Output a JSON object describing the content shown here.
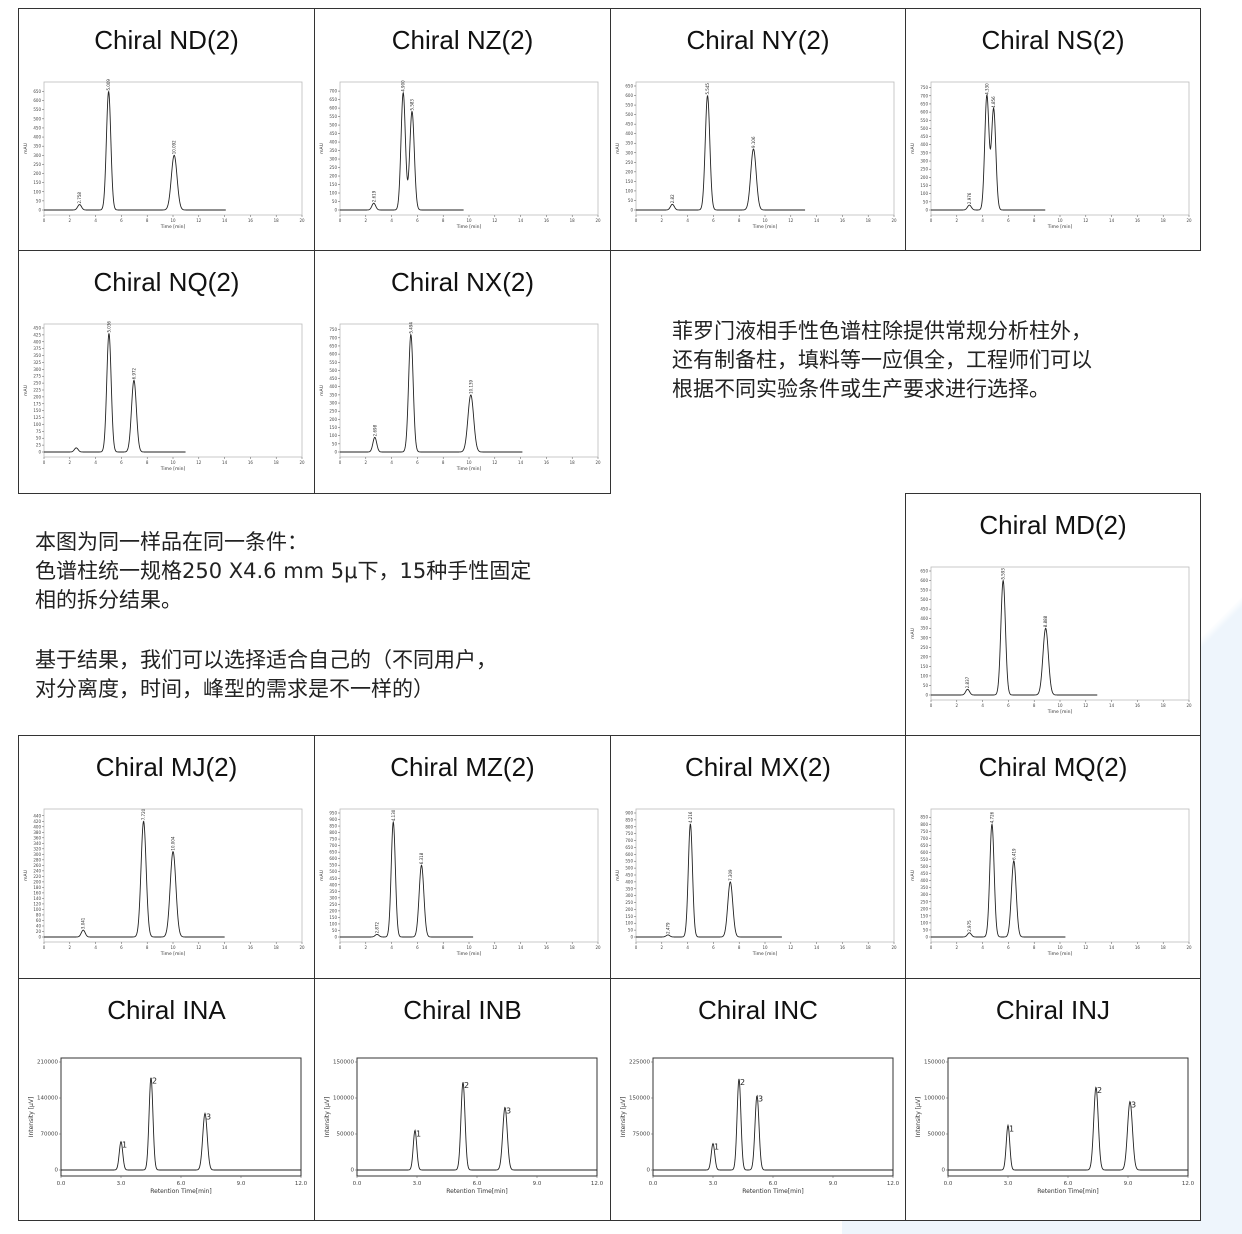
{
  "notes": {
    "right": [
      "菲罗门液相手性色谱柱除提供常规分析柱外，",
      "还有制备柱，填料等一应俱全，工程师们可以",
      "根据不同实验条件或生产要求进行选择。"
    ],
    "left1": [
      "本图为同一样品在同一条件：",
      "色谱柱统一规格250 X4.6 mm 5μ下，15种手性固定",
      "相的拆分结果。"
    ],
    "left2": [
      "基于结果，我们可以选择适合自己的（不同用户，",
      "对分离度，时间，峰型的需求是不一样的）"
    ]
  },
  "chart_data": [
    {
      "title": "Chiral ND(2)",
      "type": "line",
      "xlabel": "Time [min]",
      "ylabel": "mAU",
      "xlim": [
        0,
        20
      ],
      "ylim": [
        0,
        680
      ],
      "ystep": 50,
      "peaks": [
        {
          "x": 2.758,
          "y": 30,
          "label": "2.758"
        },
        {
          "x": 5.009,
          "y": 650,
          "label": "5.009"
        },
        {
          "x": 10.092,
          "y": 300,
          "label": "10.092"
        }
      ]
    },
    {
      "title": "Chiral NZ(2)",
      "type": "line",
      "xlabel": "Time [min]",
      "ylabel": "mAU",
      "xlim": [
        0,
        20
      ],
      "ylim": [
        0,
        730
      ],
      "ystep": 50,
      "peaks": [
        {
          "x": 2.619,
          "y": 40,
          "label": "2.619"
        },
        {
          "x": 4.9,
          "y": 690,
          "label": "4.900"
        },
        {
          "x": 5.583,
          "y": 580,
          "label": "5.583"
        }
      ]
    },
    {
      "title": "Chiral NY(2)",
      "type": "line",
      "xlabel": "Time [min]",
      "ylabel": "mAU",
      "xlim": [
        0,
        20
      ],
      "ylim": [
        0,
        650
      ],
      "ystep": 50,
      "peaks": [
        {
          "x": 2.82,
          "y": 30,
          "label": "2.82"
        },
        {
          "x": 5.545,
          "y": 600,
          "label": "5.545"
        },
        {
          "x": 9.106,
          "y": 320,
          "label": "9.106"
        }
      ]
    },
    {
      "title": "Chiral NS(2)",
      "type": "line",
      "xlabel": "Time [min]",
      "ylabel": "mAU",
      "xlim": [
        0,
        20
      ],
      "ylim": [
        0,
        760
      ],
      "ystep": 50,
      "peaks": [
        {
          "x": 2.976,
          "y": 30,
          "label": "2.976"
        },
        {
          "x": 4.33,
          "y": 700,
          "label": "4.330"
        },
        {
          "x": 4.856,
          "y": 620,
          "label": "4.856"
        }
      ]
    },
    {
      "title": "Chiral NQ(2)",
      "type": "line",
      "xlabel": "Time [min]",
      "ylabel": "mAU",
      "xlim": [
        0,
        20
      ],
      "ylim": [
        0,
        450
      ],
      "ystep": 25,
      "peaks": [
        {
          "x": 2.5,
          "y": 15,
          "label": ""
        },
        {
          "x": 5.036,
          "y": 430,
          "label": "5.036"
        },
        {
          "x": 6.972,
          "y": 260,
          "label": "6.972"
        }
      ]
    },
    {
      "title": "Chiral NX(2)",
      "type": "line",
      "xlabel": "Time [min]",
      "ylabel": "mAU",
      "xlim": [
        0,
        20
      ],
      "ylim": [
        0,
        760
      ],
      "ystep": 50,
      "peaks": [
        {
          "x": 2.698,
          "y": 90,
          "label": "2.698"
        },
        {
          "x": 5.494,
          "y": 720,
          "label": "5.494"
        },
        {
          "x": 10.139,
          "y": 350,
          "label": "10.139"
        }
      ]
    },
    {
      "title": "Chiral MD(2)",
      "type": "line",
      "xlabel": "Time [min]",
      "ylabel": "mAU",
      "xlim": [
        0,
        20
      ],
      "ylim": [
        0,
        650
      ],
      "ystep": 50,
      "peaks": [
        {
          "x": 2.837,
          "y": 30,
          "label": "2.837"
        },
        {
          "x": 5.593,
          "y": 600,
          "label": "5.593"
        },
        {
          "x": 8.888,
          "y": 350,
          "label": "8.888"
        }
      ]
    },
    {
      "title": "Chiral MJ(2)",
      "type": "line",
      "xlabel": "Time [min]",
      "ylabel": "mAU",
      "xlim": [
        0,
        20
      ],
      "ylim": [
        0,
        450
      ],
      "ystep": 20,
      "peaks": [
        {
          "x": 3.041,
          "y": 25,
          "label": "3.041"
        },
        {
          "x": 7.72,
          "y": 420,
          "label": "7.720"
        },
        {
          "x": 10.004,
          "y": 310,
          "label": "10.004"
        }
      ]
    },
    {
      "title": "Chiral MZ(2)",
      "type": "line",
      "xlabel": "Time [min]",
      "ylabel": "mAU",
      "xlim": [
        0,
        20
      ],
      "ylim": [
        0,
        950
      ],
      "ystep": 50,
      "peaks": [
        {
          "x": 2.872,
          "y": 20,
          "label": "2.872"
        },
        {
          "x": 4.13,
          "y": 880,
          "label": "4.130"
        },
        {
          "x": 6.318,
          "y": 550,
          "label": "6.318"
        }
      ]
    },
    {
      "title": "Chiral MX(2)",
      "type": "line",
      "xlabel": "Time [min]",
      "ylabel": "mAU",
      "xlim": [
        0,
        20
      ],
      "ylim": [
        0,
        900
      ],
      "ystep": 50,
      "peaks": [
        {
          "x": 2.479,
          "y": 15,
          "label": "2.479"
        },
        {
          "x": 4.216,
          "y": 820,
          "label": "4.216"
        },
        {
          "x": 7.309,
          "y": 400,
          "label": "7.309"
        }
      ]
    },
    {
      "title": "Chiral MQ(2)",
      "type": "line",
      "xlabel": "Time [min]",
      "ylabel": "mAU",
      "xlim": [
        0,
        20
      ],
      "ylim": [
        0,
        880
      ],
      "ystep": 50,
      "peaks": [
        {
          "x": 2.975,
          "y": 30,
          "label": "2.975"
        },
        {
          "x": 4.726,
          "y": 800,
          "label": "4.726"
        },
        {
          "x": 6.419,
          "y": 540,
          "label": "6.419"
        }
      ]
    },
    {
      "title": "Chiral INA",
      "type": "line",
      "xlabel": "Retention Time[min]",
      "ylabel": "Intensity [μV]",
      "xlim": [
        0,
        12
      ],
      "ylim": [
        0,
        210000
      ],
      "yticks": [
        0,
        70000,
        140000,
        210000
      ],
      "xticks": [
        "0.0",
        "3.0",
        "6.0",
        "9.0",
        "12.0"
      ],
      "peaks": [
        {
          "x": 3.0,
          "y": 55000,
          "label": "1"
        },
        {
          "x": 4.5,
          "y": 180000,
          "label": "2"
        },
        {
          "x": 7.2,
          "y": 110000,
          "label": "3"
        }
      ]
    },
    {
      "title": "Chiral INB",
      "type": "line",
      "xlabel": "Retention Time[min]",
      "ylabel": "Intensity [μV]",
      "xlim": [
        0,
        12
      ],
      "ylim": [
        0,
        150000
      ],
      "yticks": [
        0,
        50000,
        100000,
        150000
      ],
      "xticks": [
        "0.0",
        "3.0",
        "6.0",
        "9.0",
        "12.0"
      ],
      "peaks": [
        {
          "x": 2.9,
          "y": 55000,
          "label": "1"
        },
        {
          "x": 5.3,
          "y": 122000,
          "label": "2"
        },
        {
          "x": 7.4,
          "y": 87000,
          "label": "3"
        }
      ]
    },
    {
      "title": "Chiral INC",
      "type": "line",
      "xlabel": "Retention Time[min]",
      "ylabel": "Intensity [μV]",
      "xlim": [
        0,
        12
      ],
      "ylim": [
        0,
        225000
      ],
      "yticks": [
        0,
        75000,
        150000,
        225000
      ],
      "xticks": [
        "0.0",
        "3.0",
        "6.0",
        "9.0",
        "12.0"
      ],
      "peaks": [
        {
          "x": 3.0,
          "y": 55000,
          "label": "1"
        },
        {
          "x": 4.3,
          "y": 190000,
          "label": "2"
        },
        {
          "x": 5.2,
          "y": 155000,
          "label": "3"
        }
      ]
    },
    {
      "title": "Chiral INJ",
      "type": "line",
      "xlabel": "Retention Time[min]",
      "ylabel": "Intensity [μV]",
      "xlim": [
        0,
        12
      ],
      "ylim": [
        0,
        150000
      ],
      "yticks": [
        0,
        50000,
        100000,
        150000
      ],
      "xticks": [
        "0.0",
        "3.0",
        "6.0",
        "9.0",
        "12.0"
      ],
      "peaks": [
        {
          "x": 3.0,
          "y": 62000,
          "label": "1"
        },
        {
          "x": 7.4,
          "y": 115000,
          "label": "2"
        },
        {
          "x": 9.1,
          "y": 95000,
          "label": "3"
        }
      ]
    }
  ]
}
